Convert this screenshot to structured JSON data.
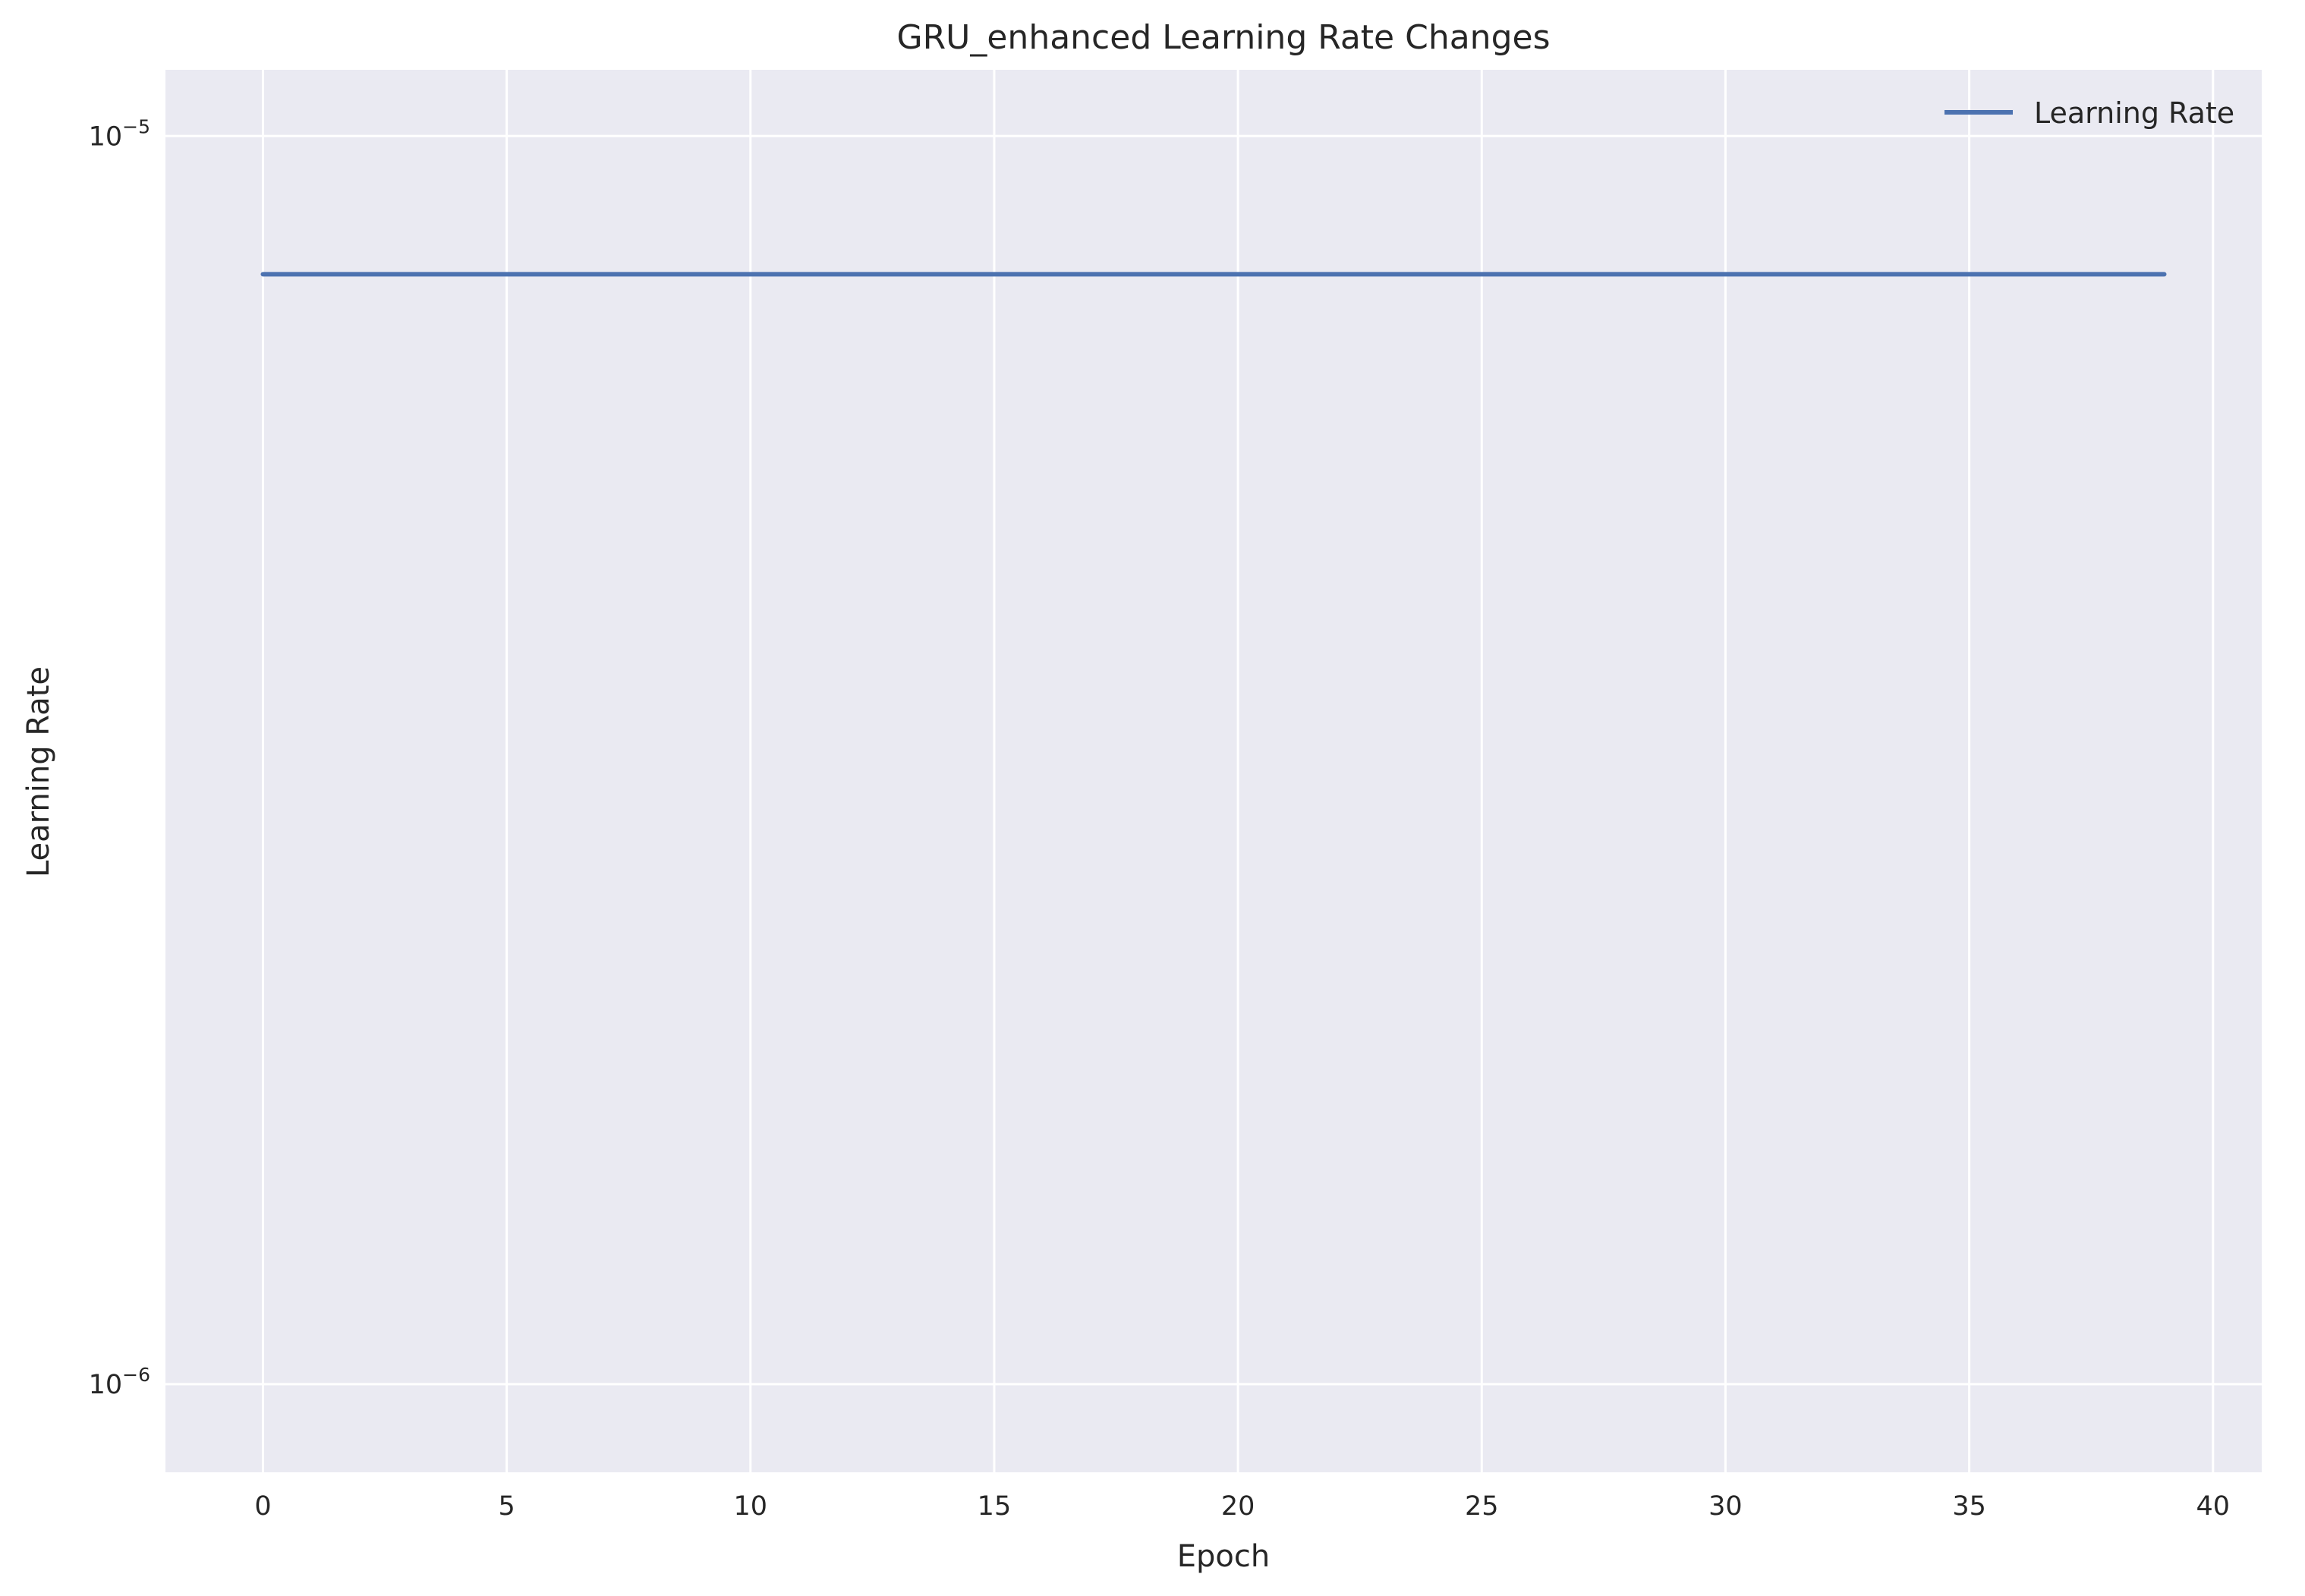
{
  "chart_data": {
    "type": "line",
    "title": "GRU_enhanced Learning Rate Changes",
    "xlabel": "Epoch",
    "ylabel": "Learning Rate",
    "yscale": "log",
    "xlim": [
      -2,
      41
    ],
    "ylim": [
      8.5e-07,
      1.13e-05
    ],
    "x_ticks": [
      0,
      5,
      10,
      15,
      20,
      25,
      30,
      35,
      40
    ],
    "y_ticks": [
      {
        "value": 1e-05,
        "base": "10",
        "exp": "−5"
      },
      {
        "value": 1e-06,
        "base": "10",
        "exp": "−6"
      }
    ],
    "grid": true,
    "legend": {
      "position": "upper-right",
      "entries": [
        "Learning Rate"
      ]
    },
    "colors": {
      "background": "#eaeaf2",
      "grid": "#ffffff",
      "line": "#4c72b0"
    },
    "series": [
      {
        "name": "Learning Rate",
        "x": [
          0,
          1,
          2,
          3,
          4,
          5,
          6,
          7,
          8,
          9,
          10,
          11,
          12,
          13,
          14,
          15,
          16,
          17,
          18,
          19,
          20,
          21,
          22,
          23,
          24,
          25,
          26,
          27,
          28,
          29,
          30,
          31,
          32,
          33,
          34,
          35,
          36,
          37,
          38,
          39
        ],
        "y": [
          7.75e-06,
          7.75e-06,
          7.75e-06,
          7.75e-06,
          7.75e-06,
          7.75e-06,
          7.75e-06,
          7.75e-06,
          7.75e-06,
          7.75e-06,
          7.75e-06,
          7.75e-06,
          7.75e-06,
          7.75e-06,
          7.75e-06,
          7.75e-06,
          7.75e-06,
          7.75e-06,
          7.75e-06,
          7.75e-06,
          7.75e-06,
          7.75e-06,
          7.75e-06,
          7.75e-06,
          7.75e-06,
          7.75e-06,
          7.75e-06,
          7.75e-06,
          7.75e-06,
          7.75e-06,
          7.75e-06,
          7.75e-06,
          7.75e-06,
          7.75e-06,
          7.75e-06,
          7.75e-06,
          7.75e-06,
          7.75e-06,
          7.75e-06,
          7.75e-06
        ]
      }
    ]
  }
}
